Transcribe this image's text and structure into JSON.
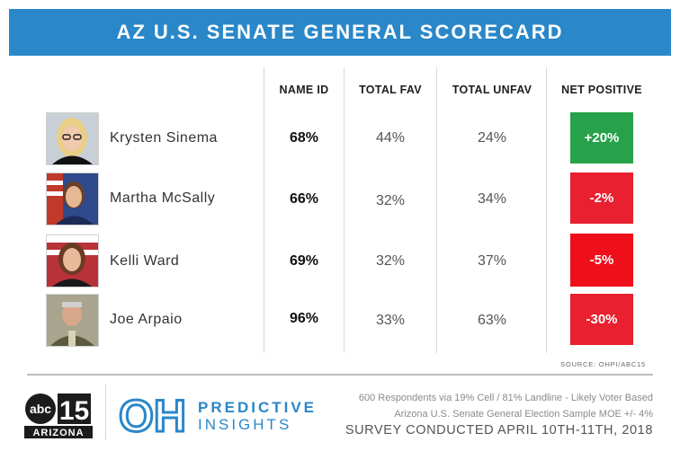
{
  "title": "AZ U.S. SENATE GENERAL SCORECARD",
  "chart_data": {
    "type": "table",
    "columns": [
      "NAME ID",
      "TOTAL FAV",
      "TOTAL UNFAV",
      "NET POSITIVE"
    ],
    "rows": [
      {
        "name": "Krysten Sinema",
        "name_id": "68%",
        "total_fav": "44%",
        "total_unfav": "24%",
        "net_positive": "+20%",
        "net_color": "#27a24a"
      },
      {
        "name": "Martha McSally",
        "name_id": "66%",
        "total_fav": "32%",
        "total_unfav": "34%",
        "net_positive": "-2%",
        "net_color": "#e8202f"
      },
      {
        "name": "Kelli Ward",
        "name_id": "69%",
        "total_fav": "32%",
        "total_unfav": "37%",
        "net_positive": "-5%",
        "net_color": "#ee0f1a"
      },
      {
        "name": "Joe Arpaio",
        "name_id": "96%",
        "total_fav": "33%",
        "total_unfav": "63%",
        "net_positive": "-30%",
        "net_color": "#e8202f"
      }
    ]
  },
  "source": "SOURCE: OHPI/ABC15",
  "logos": {
    "abc_text": "abc",
    "channel": "15",
    "station_label": "ARIZONA",
    "oh_letters": "OH",
    "ohpi_name": "PREDICTIVE",
    "ohpi_sub": "INSIGHTS"
  },
  "footer": {
    "line1": "600 Respondents via 19% Cell / 81% Landline - Likely Voter Based",
    "line2": "Arizona U.S. Senate General Election Sample MOE +/- 4%",
    "line3": "SURVEY CONDUCTED APRIL 10TH-11TH, 2018"
  },
  "colors": {
    "brand_blue": "#2a87c8",
    "positive_green": "#27a24a",
    "negative_red": "#e8202f"
  }
}
